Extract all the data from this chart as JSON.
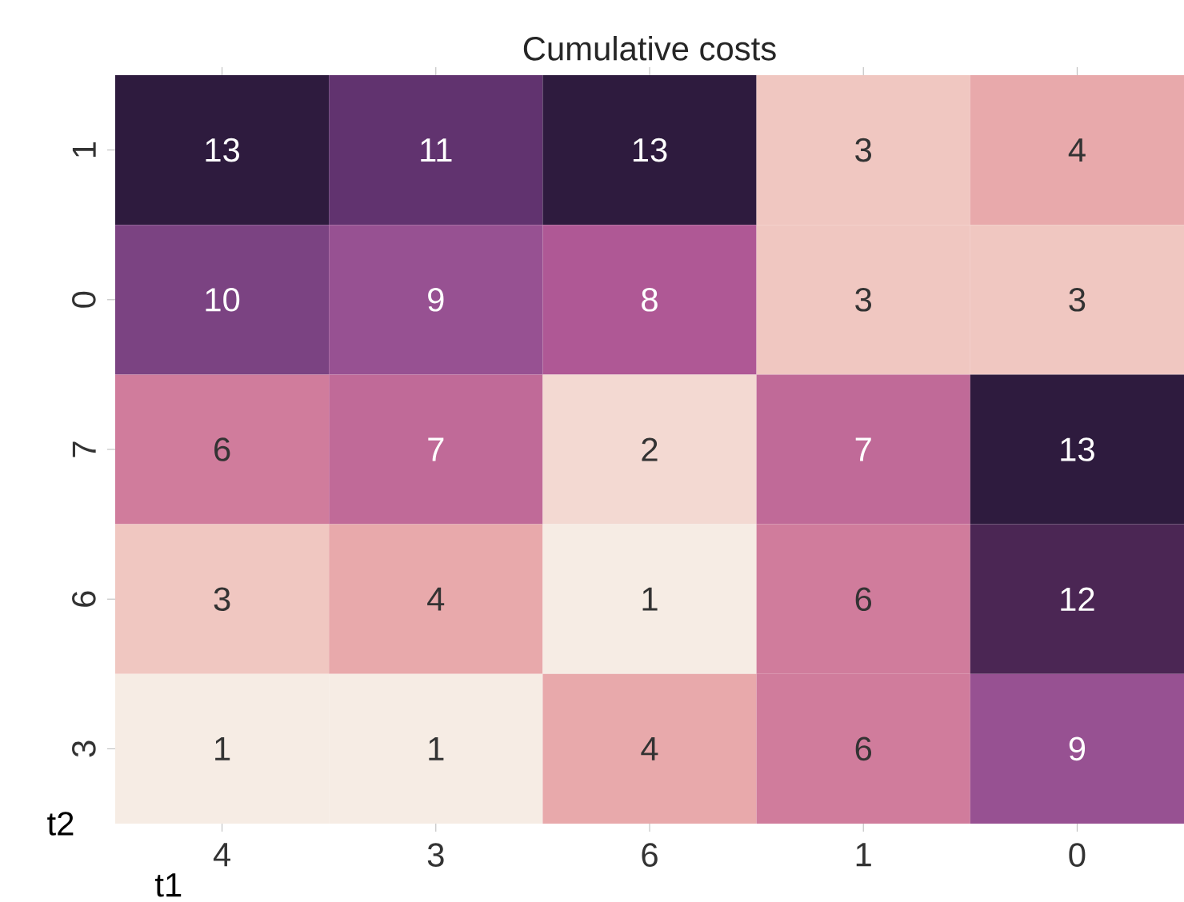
{
  "chart_data": {
    "type": "heatmap",
    "title": "Cumulative costs",
    "xlabel": "t1",
    "ylabel": "t2",
    "data_labels": true,
    "categories": [
      "4",
      "3",
      "6",
      "1",
      "0"
    ],
    "y_categories": [
      "1",
      "0",
      "7",
      "6",
      "3"
    ],
    "cells": [
      [
        13,
        11,
        13,
        3,
        4
      ],
      [
        10,
        9,
        8,
        3,
        3
      ],
      [
        6,
        7,
        2,
        7,
        13
      ],
      [
        3,
        4,
        1,
        6,
        12
      ],
      [
        1,
        1,
        4,
        6,
        9
      ]
    ]
  }
}
